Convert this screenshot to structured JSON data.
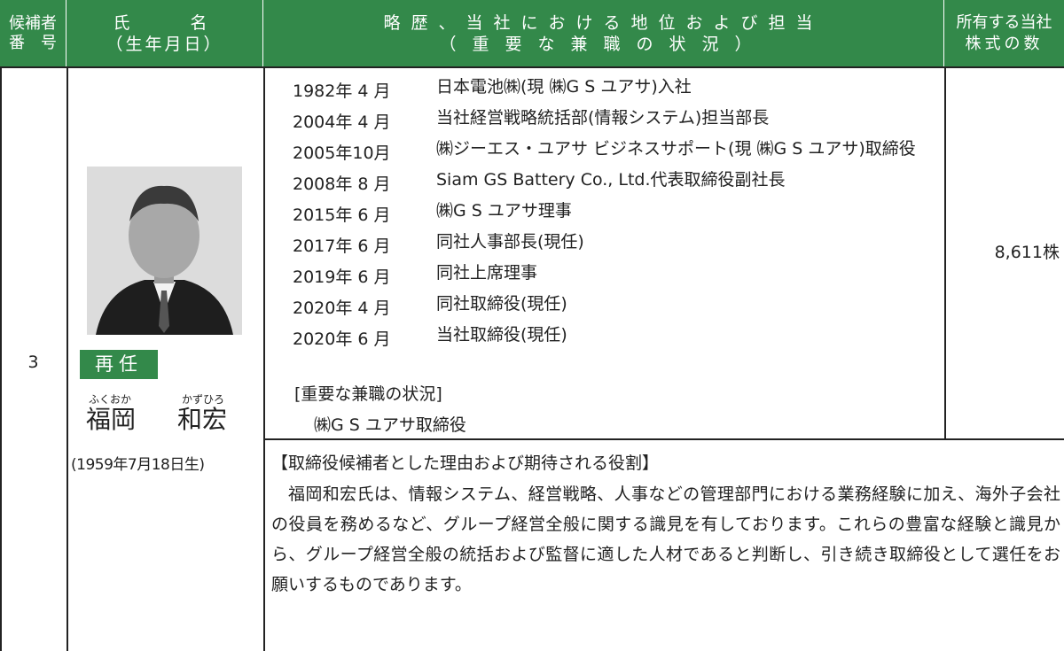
{
  "header": {
    "candidate_no": [
      "候補者",
      "番　号"
    ],
    "name": [
      "氏　　名",
      "（生年月日）"
    ],
    "career": [
      "略歴、当社における地位および担当",
      "（重要な兼職の状況）"
    ],
    "shares": [
      "所有する当社",
      "株式の数"
    ]
  },
  "candidate": {
    "number": "3",
    "status": "再任",
    "furigana": [
      "ふくおか",
      "かずひろ"
    ],
    "name": [
      "福岡",
      "和宏"
    ],
    "birth": "(1959年7月18日生)",
    "career": [
      {
        "date": "1982年 4 月",
        "text": "日本電池㈱(現 ㈱G S ユアサ)入社"
      },
      {
        "date": "2004年 4 月",
        "text": "当社経営戦略統括部(情報システム)担当部長"
      },
      {
        "date": "2005年10月",
        "text": "㈱ジーエス・ユアサ ビジネスサポート(現 ㈱G S ユアサ)取締役"
      },
      {
        "date": "2008年 8 月",
        "text": "Siam GS Battery Co., Ltd.代表取締役副社長"
      },
      {
        "date": "2015年 6 月",
        "text": "㈱G S ユアサ理事"
      },
      {
        "date": "2017年 6 月",
        "text": "同社人事部長(現任)"
      },
      {
        "date": "2019年 6 月",
        "text": "同社上席理事"
      },
      {
        "date": "2020年 4 月",
        "text": "同社取締役(現任)"
      },
      {
        "date": "2020年 6 月",
        "text": "当社取締役(現任)"
      }
    ],
    "concurrent": {
      "title": "[重要な兼職の状況]",
      "items": [
        "㈱G S ユアサ取締役"
      ]
    },
    "shares": "8,611株",
    "reason": {
      "title": "【取締役候補者とした理由および期待される役割】",
      "body": "福岡和宏氏は、情報システム、経営戦略、人事などの管理部門における業務経験に加え、海外子会社の役員を務めるなど、グループ経営全般に関する識見を有しております。これらの豊富な経験と識見から、グループ経営全般の統括および監督に適した人材であると判断し、引き続き取締役として選任をお願いするものであります。"
    }
  }
}
